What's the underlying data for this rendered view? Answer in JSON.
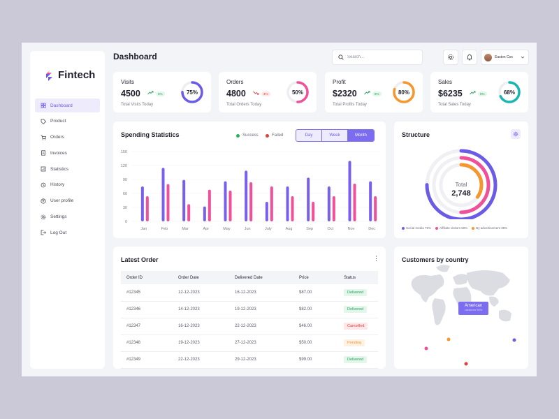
{
  "app": {
    "name": "Fintech"
  },
  "sidebar": {
    "items": [
      {
        "label": "Dashboard",
        "icon": "grid-icon",
        "active": true
      },
      {
        "label": "Product",
        "icon": "tag-icon"
      },
      {
        "label": "Orders",
        "icon": "cart-icon"
      },
      {
        "label": "Invoices",
        "icon": "invoice-icon"
      },
      {
        "label": "Statistics",
        "icon": "chart-icon"
      },
      {
        "label": "History",
        "icon": "history-icon"
      },
      {
        "label": "User profile",
        "icon": "user-icon"
      },
      {
        "label": "Settings",
        "icon": "gear-icon"
      },
      {
        "label": "Log Out",
        "icon": "logout-icon"
      }
    ]
  },
  "header": {
    "title": "Dashboard",
    "search_placeholder": "Search...",
    "user_name": "Easton Cox"
  },
  "stats": [
    {
      "title": "Visits",
      "value": "4500",
      "trend": "up",
      "change": "5%",
      "sub": "Total Visits Today",
      "percent": 75,
      "percent_label": "75%",
      "color": "#6b5ce7"
    },
    {
      "title": "Orders",
      "value": "4800",
      "trend": "down",
      "change": "4%",
      "sub": "Total Orders Today",
      "percent": 50,
      "percent_label": "50%",
      "color": "#f0509a"
    },
    {
      "title": "Profit",
      "value": "$2320",
      "trend": "up",
      "change": "8%",
      "sub": "Total Profits Today",
      "percent": 80,
      "percent_label": "80%",
      "color": "#f5962e"
    },
    {
      "title": "Sales",
      "value": "$6235",
      "trend": "up",
      "change": "8%",
      "sub": "Total Sales Today",
      "percent": 68,
      "percent_label": "68%",
      "color": "#18b5b5"
    }
  ],
  "spending": {
    "title": "Spending Statistics",
    "legend_success": "Success",
    "legend_failed": "Failed",
    "tabs": [
      "Day",
      "Week",
      "Month"
    ],
    "active_tab": "Month"
  },
  "chart_data": {
    "type": "bar",
    "categories": [
      "Jan",
      "Feb",
      "Mar",
      "Apr",
      "May",
      "Jun",
      "July",
      "Aug",
      "Sep",
      "Oct",
      "Nov",
      "Dec"
    ],
    "series": [
      {
        "name": "Success",
        "color": "#7860ec",
        "values": [
          75,
          115,
          89,
          32,
          86,
          109,
          42,
          75,
          94,
          75,
          130,
          86
        ]
      },
      {
        "name": "Failed",
        "color": "#f0509a",
        "values": [
          54,
          80,
          37,
          68,
          66,
          84,
          75,
          54,
          42,
          54,
          81,
          54
        ]
      }
    ],
    "yticks": [
      0,
      30,
      60,
      90,
      120,
      150
    ],
    "ylim": [
      0,
      150
    ],
    "grid": true
  },
  "structure": {
    "title": "Structure",
    "center_label": "Total",
    "center_value": "2,748",
    "rings": [
      {
        "label": "Social media 75%",
        "percent": 75,
        "color": "#6b5ce7"
      },
      {
        "label": "Affiliate visitors 50%",
        "percent": 50,
        "color": "#f0509a"
      },
      {
        "label": "By advertisement 35%",
        "percent": 35,
        "color": "#f5962e"
      }
    ]
  },
  "orders": {
    "title": "Latest Order",
    "columns": [
      "Order ID",
      "Order Date",
      "Delivered Date",
      "Price",
      "Status"
    ],
    "rows": [
      {
        "id": "#12345",
        "order_date": "12-12-2023",
        "delivered": "16-12-2023",
        "price": "$87.00",
        "status": "Delivered",
        "status_type": "green"
      },
      {
        "id": "#12346",
        "order_date": "14-12-2023",
        "delivered": "19-12-2023",
        "price": "$82.00",
        "status": "Delivered",
        "status_type": "green"
      },
      {
        "id": "#12347",
        "order_date": "16-12-2023",
        "delivered": "22-12-2023",
        "price": "$46.00",
        "status": "Cancelled",
        "status_type": "red"
      },
      {
        "id": "#12348",
        "order_date": "19-12-2023",
        "delivered": "27-12-2023",
        "price": "$50.00",
        "status": "Pending",
        "status_type": "orange"
      },
      {
        "id": "#12349",
        "order_date": "22-12-2023",
        "delivered": "29-12-2023",
        "price": "$99.00",
        "status": "Delivered",
        "status_type": "green"
      }
    ]
  },
  "customers": {
    "title": "Customers by country",
    "tooltip_title": "American",
    "tooltip_sub": "customer 56%"
  }
}
